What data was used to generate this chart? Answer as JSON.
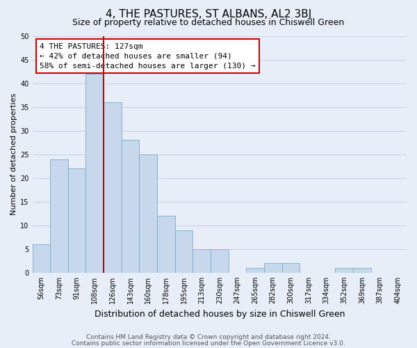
{
  "title": "4, THE PASTURES, ST ALBANS, AL2 3BJ",
  "subtitle": "Size of property relative to detached houses in Chiswell Green",
  "xlabel": "Distribution of detached houses by size in Chiswell Green",
  "ylabel": "Number of detached properties",
  "bar_labels": [
    "56sqm",
    "73sqm",
    "91sqm",
    "108sqm",
    "126sqm",
    "143sqm",
    "160sqm",
    "178sqm",
    "195sqm",
    "213sqm",
    "230sqm",
    "247sqm",
    "265sqm",
    "282sqm",
    "300sqm",
    "317sqm",
    "334sqm",
    "352sqm",
    "369sqm",
    "387sqm",
    "404sqm"
  ],
  "bar_heights": [
    6,
    24,
    22,
    42,
    36,
    28,
    25,
    12,
    9,
    5,
    5,
    0,
    1,
    2,
    2,
    0,
    0,
    1,
    1,
    0,
    0
  ],
  "bar_color": "#c8d8ec",
  "bar_edge_color": "#7aaac8",
  "vline_color": "#cc0000",
  "annotation_text": "4 THE PASTURES: 127sqm\n← 42% of detached houses are smaller (94)\n58% of semi-detached houses are larger (130) →",
  "annotation_box_color": "#ffffff",
  "annotation_box_edge": "#cc0000",
  "ylim": [
    0,
    50
  ],
  "yticks": [
    0,
    5,
    10,
    15,
    20,
    25,
    30,
    35,
    40,
    45,
    50
  ],
  "grid_color": "#c8d4e8",
  "background_color": "#e8eef8",
  "footer_line1": "Contains HM Land Registry data © Crown copyright and database right 2024.",
  "footer_line2": "Contains public sector information licensed under the Open Government Licence v3.0.",
  "title_fontsize": 11,
  "subtitle_fontsize": 9,
  "xlabel_fontsize": 9,
  "ylabel_fontsize": 8,
  "tick_fontsize": 7,
  "annotation_fontsize": 8,
  "footer_fontsize": 6.5
}
